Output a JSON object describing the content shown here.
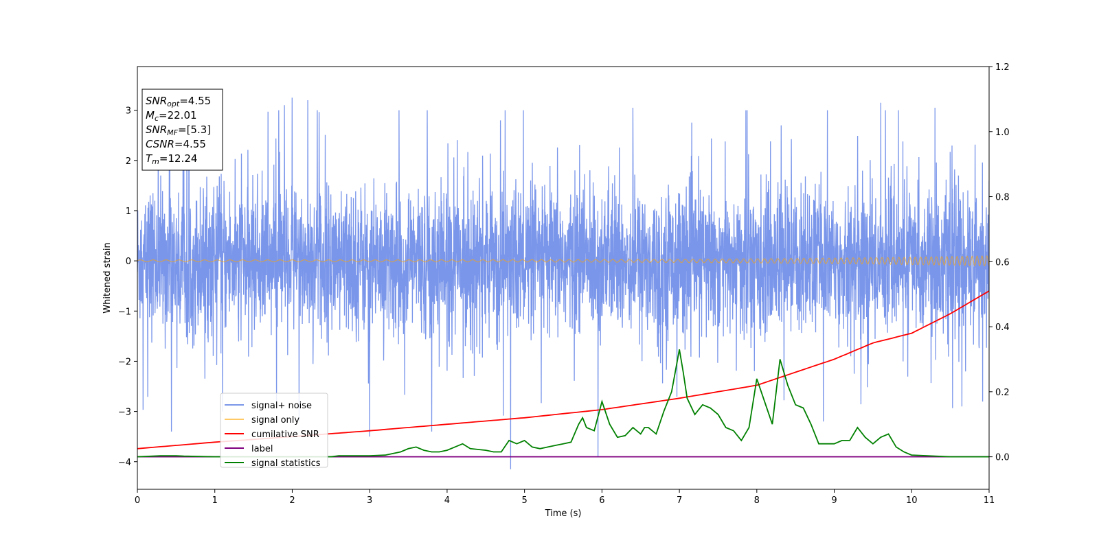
{
  "chart_data": {
    "type": "line",
    "xlabel": "Time (s)",
    "ylabel": "Whitened strain",
    "xlim": [
      0,
      11
    ],
    "ylim_left": [
      -4.55,
      3.87
    ],
    "ylim_right": [
      -0.1,
      1.2
    ],
    "x_ticks": [
      0,
      1,
      2,
      3,
      4,
      5,
      6,
      7,
      8,
      9,
      10,
      11
    ],
    "y_ticks_left": [
      -4,
      -3,
      -2,
      -1,
      0,
      1,
      2,
      3
    ],
    "y_ticks_right": [
      0.0,
      0.2,
      0.4,
      0.6,
      0.8,
      1.0,
      1.2
    ],
    "y_tick_labels_left": [
      "−4",
      "−3",
      "−2",
      "−1",
      "0",
      "1",
      "2",
      "3"
    ],
    "y_tick_labels_right": [
      "0.0",
      "0.2",
      "0.4",
      "0.6",
      "0.8",
      "1.0",
      "1.2"
    ],
    "grid": false,
    "legend_position": "lower-left",
    "annotation": {
      "lines": [
        {
          "base": "SNR",
          "sub": "opt",
          "value": "=4.55"
        },
        {
          "base": "M",
          "sub": "c",
          "value": "=22.01"
        },
        {
          "base": "SNR",
          "sub": "MF",
          "value": "=[5.3]"
        },
        {
          "base": "CSNR",
          "sub": "",
          "value": "=4.55"
        },
        {
          "base": "T",
          "sub": "m",
          "value": "=12.24"
        }
      ]
    },
    "series": [
      {
        "name": "signal+ noise",
        "axis": "left",
        "color": "#4169e1",
        "opacity": 0.7,
        "description": "noisy whitened strain",
        "envelope": {
          "x": [
            0,
            11
          ],
          "typical_max": [
            1.9,
            2.3
          ],
          "typical_min": [
            -1.9,
            -2.3
          ]
        },
        "spikes": [
          {
            "x": 1.9,
            "y": 3.1
          },
          {
            "x": 2.0,
            "y": 3.25
          },
          {
            "x": 2.2,
            "y": 3.2
          },
          {
            "x": 4.75,
            "y": 3.0
          },
          {
            "x": 4.82,
            "y": -4.15
          },
          {
            "x": 5.95,
            "y": -3.9
          },
          {
            "x": 6.4,
            "y": 3.05
          },
          {
            "x": 9.6,
            "y": 3.15
          },
          {
            "x": 10.3,
            "y": 3.05
          },
          {
            "x": 0.44,
            "y": -3.4
          },
          {
            "x": 3.0,
            "y": -3.5
          },
          {
            "x": 3.8,
            "y": -3.4
          },
          {
            "x": 10.65,
            "y": -2.9
          },
          {
            "x": 1.1,
            "y": -3.0
          },
          {
            "x": 11.0,
            "y": 1.6
          }
        ]
      },
      {
        "name": "signal only",
        "axis": "left",
        "color": "#ffa500",
        "opacity": 0.6,
        "description": "chirp with slowly rising amplitude and frequency",
        "amplitude": [
          0.02,
          0.1
        ],
        "frequency_hz": [
          6,
          16
        ]
      },
      {
        "name": "cumilative SNR",
        "axis": "right",
        "color": "#ff0000",
        "x": [
          0,
          1,
          2,
          3,
          4,
          5,
          6,
          7,
          8,
          9,
          9.5,
          10,
          10.5,
          11
        ],
        "y": [
          0.025,
          0.045,
          0.062,
          0.08,
          0.1,
          0.12,
          0.145,
          0.18,
          0.22,
          0.3,
          0.35,
          0.38,
          0.44,
          0.51
        ]
      },
      {
        "name": "label",
        "axis": "right",
        "color": "#800080",
        "x": [
          0,
          11
        ],
        "y": [
          0.0,
          0.0
        ]
      },
      {
        "name": "signal statistics",
        "axis": "right",
        "color": "#008000",
        "x": [
          0,
          0.2,
          0.3,
          0.5,
          0.6,
          1.0,
          1.5,
          2.0,
          2.5,
          2.6,
          3.0,
          3.2,
          3.3,
          3.4,
          3.5,
          3.6,
          3.7,
          3.8,
          3.9,
          4.0,
          4.1,
          4.2,
          4.3,
          4.5,
          4.6,
          4.7,
          4.8,
          4.9,
          5.0,
          5.1,
          5.2,
          5.3,
          5.4,
          5.5,
          5.6,
          5.7,
          5.75,
          5.8,
          5.9,
          6.0,
          6.1,
          6.2,
          6.3,
          6.4,
          6.5,
          6.55,
          6.6,
          6.7,
          6.8,
          6.9,
          7.0,
          7.05,
          7.1,
          7.2,
          7.3,
          7.4,
          7.5,
          7.6,
          7.7,
          7.8,
          7.9,
          8.0,
          8.1,
          8.2,
          8.3,
          8.4,
          8.5,
          8.6,
          8.7,
          8.8,
          8.9,
          9.0,
          9.1,
          9.2,
          9.3,
          9.4,
          9.5,
          9.6,
          9.7,
          9.8,
          9.9,
          10.0,
          10.5,
          11.0
        ],
        "y": [
          0.0,
          0.002,
          0.003,
          0.003,
          0.002,
          0.0,
          0.0,
          0.0,
          0.0,
          0.003,
          0.003,
          0.005,
          0.01,
          0.015,
          0.025,
          0.03,
          0.02,
          0.015,
          0.015,
          0.02,
          0.03,
          0.04,
          0.025,
          0.02,
          0.015,
          0.015,
          0.05,
          0.04,
          0.05,
          0.03,
          0.025,
          0.03,
          0.035,
          0.04,
          0.045,
          0.1,
          0.12,
          0.09,
          0.08,
          0.17,
          0.1,
          0.06,
          0.065,
          0.09,
          0.07,
          0.09,
          0.09,
          0.07,
          0.14,
          0.2,
          0.33,
          0.26,
          0.18,
          0.13,
          0.16,
          0.15,
          0.13,
          0.09,
          0.08,
          0.05,
          0.09,
          0.24,
          0.17,
          0.1,
          0.3,
          0.22,
          0.16,
          0.15,
          0.1,
          0.04,
          0.04,
          0.04,
          0.05,
          0.05,
          0.09,
          0.06,
          0.04,
          0.06,
          0.07,
          0.03,
          0.015,
          0.005,
          0.0,
          0.0
        ]
      }
    ]
  }
}
